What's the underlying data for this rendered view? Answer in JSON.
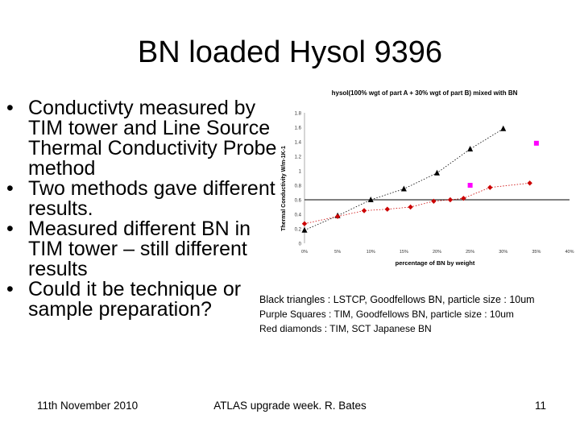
{
  "slide": {
    "title": "BN loaded Hysol 9396",
    "bullets": [
      "Conductivty measured by TIM tower and Line Source Thermal Conductivity Probe method",
      "Two methods gave different results.",
      "Measured different BN in TIM tower – still different results",
      "Could it be technique or sample preparation?"
    ],
    "notes": [
      "Black triangles : LSTCP, Goodfellows BN, particle size : 10um",
      "Purple Squares : TIM, Goodfellows BN, particle size : 10um",
      "Red diamonds : TIM, SCT Japanese BN"
    ],
    "footer": {
      "date": "11th November 2010",
      "center": "ATLAS upgrade week. R. Bates",
      "page": "11"
    }
  },
  "colors": {
    "triangles": "#000000",
    "squares": "#ff00ff",
    "diamonds": "#cc0000",
    "reference_line": "#000000"
  },
  "chart_data": {
    "type": "scatter",
    "title": "hysol(100% wgt of part A + 30% wgt of part B) mixed with BN",
    "xlabel": "percentage of BN by weight",
    "ylabel": "Thermal Conductivity W/m-1K-1",
    "x_ticks": [
      "0%",
      "5%",
      "10%",
      "15%",
      "20%",
      "25%",
      "30%",
      "35%",
      "40%"
    ],
    "y_ticks": [
      "0",
      "0.2",
      "0.4",
      "0.6",
      "0.8",
      "1",
      "1.2",
      "1.4",
      "1.6",
      "1.8"
    ],
    "xlim": [
      0,
      40
    ],
    "ylim": [
      0,
      1.8
    ],
    "reference_line_y": 0.6,
    "grid": false,
    "series": [
      {
        "marker": "triangle",
        "trendline": "dotted",
        "x": [
          0,
          5,
          10,
          15,
          20,
          25,
          30
        ],
        "y": [
          0.18,
          0.38,
          0.6,
          0.75,
          0.97,
          1.3,
          1.58
        ]
      },
      {
        "marker": "square",
        "x": [
          25,
          35
        ],
        "y": [
          0.8,
          1.38
        ]
      },
      {
        "marker": "diamond",
        "trendline": "dotted",
        "x": [
          0,
          5,
          9,
          12.5,
          16,
          19.5,
          22,
          24,
          28,
          34
        ],
        "y": [
          0.27,
          0.37,
          0.45,
          0.47,
          0.5,
          0.58,
          0.6,
          0.62,
          0.77,
          0.83
        ]
      }
    ]
  }
}
